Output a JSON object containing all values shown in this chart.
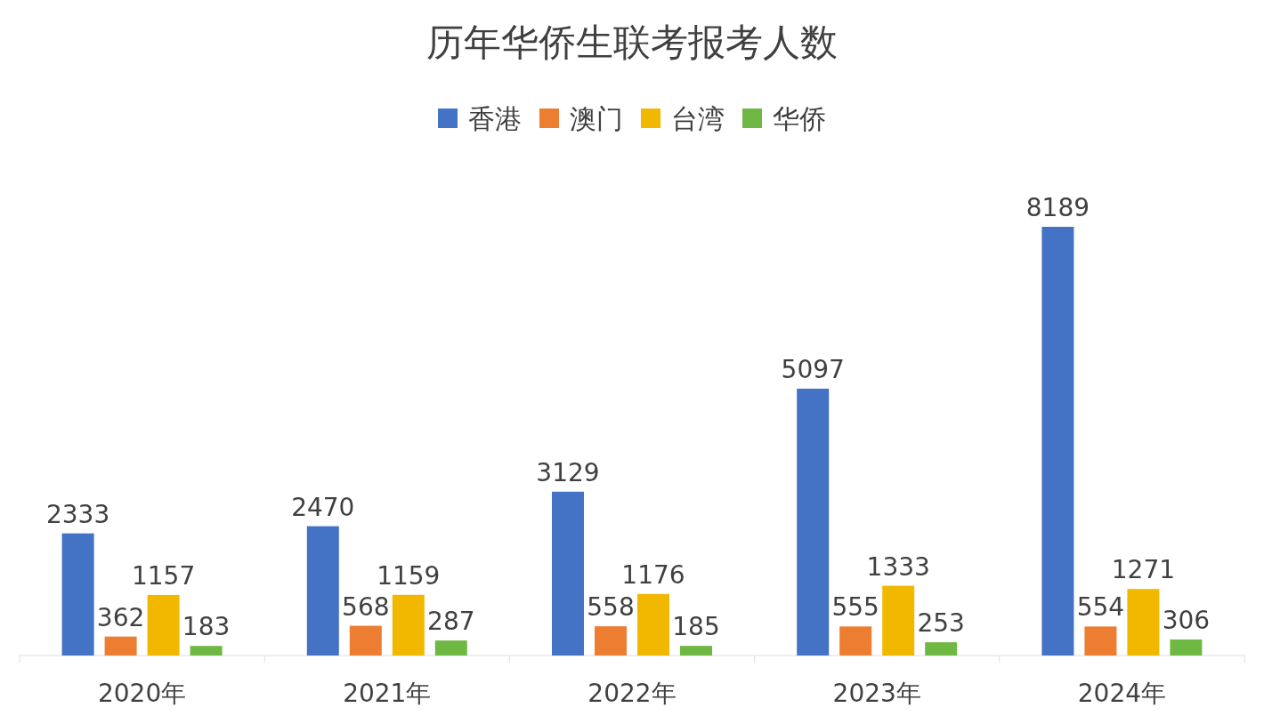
{
  "chart_data": {
    "type": "bar",
    "title": "历年华侨生联考报考人数",
    "categories": [
      "2020年",
      "2021年",
      "2022年",
      "2023年",
      "2024年"
    ],
    "series": [
      {
        "name": "香港",
        "color": "#4472c4",
        "values": [
          2333,
          2470,
          3129,
          5097,
          8189
        ]
      },
      {
        "name": "澳门",
        "color": "#ed7d31",
        "values": [
          362,
          568,
          558,
          555,
          554
        ]
      },
      {
        "name": "台湾",
        "color": "#f2b800",
        "values": [
          1157,
          1159,
          1176,
          1333,
          1271
        ]
      },
      {
        "name": "华侨",
        "color": "#70b844",
        "values": [
          183,
          287,
          185,
          253,
          306
        ]
      }
    ],
    "data_labels": true,
    "legend": "top"
  }
}
